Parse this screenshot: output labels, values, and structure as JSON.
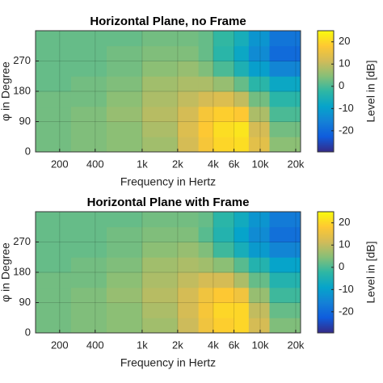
{
  "chart_data": [
    {
      "type": "heatmap",
      "title": "Horizontal Plane, no Frame",
      "xlabel": "Frequency in Hertz",
      "ylabel": "φ in Degree",
      "colorbar_label": "Level in [dB]",
      "x_edges": [
        125,
        250,
        500,
        1000,
        2000,
        3000,
        4000,
        6000,
        8000,
        12000,
        22000
      ],
      "y_edges": [
        0,
        45,
        90,
        135,
        180,
        225,
        270,
        315,
        360
      ],
      "z": [
        [
          3,
          4,
          5,
          7,
          12,
          17,
          20,
          21,
          14,
          5
        ],
        [
          3,
          4,
          5,
          8,
          13,
          18,
          21,
          22,
          12,
          3
        ],
        [
          3,
          4,
          6,
          9,
          12,
          17,
          19,
          18,
          8,
          0
        ],
        [
          3,
          3,
          5,
          8,
          10,
          12,
          13,
          10,
          3,
          -3
        ],
        [
          2,
          3,
          4,
          7,
          8,
          8,
          6,
          2,
          -3,
          -8
        ],
        [
          2,
          2,
          3,
          5,
          6,
          4,
          0,
          -5,
          -10,
          -15
        ],
        [
          2,
          2,
          3,
          4,
          4,
          2,
          -3,
          -8,
          -14,
          -20
        ],
        [
          2,
          2,
          2,
          3,
          3,
          2,
          -2,
          -6,
          -12,
          -18
        ]
      ],
      "xscale": "log",
      "xlim": [
        125,
        22000
      ],
      "ylim": [
        0,
        360
      ],
      "xticks": [
        200,
        400,
        {
          "value": 1000,
          "label": "1k"
        },
        {
          "value": 2000,
          "label": "2k"
        },
        {
          "value": 4000,
          "label": "4k"
        },
        {
          "value": 6000,
          "label": "6k"
        },
        {
          "value": 10000,
          "label": "10k"
        },
        {
          "value": 20000,
          "label": "20k"
        }
      ],
      "yticks": [
        0,
        90,
        180,
        270
      ],
      "clim": [
        -29.5,
        25
      ],
      "cticks": [
        -20,
        -10,
        0,
        10,
        20
      ],
      "grid": true,
      "colormap": [
        "#352a87",
        "#0f5cdd",
        "#1481d6",
        "#06a4ca",
        "#2eb7a4",
        "#87bf77",
        "#d1bb59",
        "#fec832",
        "#f9fb0e"
      ]
    },
    {
      "type": "heatmap",
      "title": "Horizontal Plane with Frame",
      "xlabel": "Frequency in Hertz",
      "ylabel": "φ in Degree",
      "colorbar_label": "Level in [dB]",
      "x_edges": [
        125,
        250,
        500,
        1000,
        2000,
        3000,
        4000,
        6000,
        8000,
        12000,
        22000
      ],
      "y_edges": [
        0,
        45,
        90,
        135,
        180,
        225,
        270,
        315,
        360
      ],
      "z": [
        [
          3,
          4,
          5,
          7,
          11,
          16,
          19,
          20,
          12,
          4
        ],
        [
          3,
          4,
          5,
          8,
          12,
          17,
          20,
          20,
          10,
          2
        ],
        [
          3,
          4,
          6,
          9,
          12,
          16,
          18,
          16,
          6,
          -1
        ],
        [
          3,
          3,
          5,
          8,
          10,
          12,
          12,
          8,
          2,
          -4
        ],
        [
          2,
          3,
          4,
          7,
          8,
          7,
          5,
          1,
          -4,
          -9
        ],
        [
          2,
          2,
          3,
          5,
          6,
          4,
          -1,
          -6,
          -11,
          -15
        ],
        [
          2,
          2,
          3,
          4,
          4,
          1,
          -4,
          -9,
          -14,
          -19
        ],
        [
          2,
          2,
          2,
          3,
          3,
          2,
          -3,
          -7,
          -12,
          -17
        ]
      ],
      "xscale": "log",
      "xlim": [
        125,
        22000
      ],
      "ylim": [
        0,
        360
      ],
      "xticks": [
        200,
        400,
        {
          "value": 1000,
          "label": "1k"
        },
        {
          "value": 2000,
          "label": "2k"
        },
        {
          "value": 4000,
          "label": "4k"
        },
        {
          "value": 6000,
          "label": "6k"
        },
        {
          "value": 10000,
          "label": "10k"
        },
        {
          "value": 20000,
          "label": "20k"
        }
      ],
      "yticks": [
        0,
        90,
        180,
        270
      ],
      "clim": [
        -29.5,
        25
      ],
      "cticks": [
        -20,
        -10,
        0,
        10,
        20
      ],
      "grid": true,
      "colormap": [
        "#352a87",
        "#0f5cdd",
        "#1481d6",
        "#06a4ca",
        "#2eb7a4",
        "#87bf77",
        "#d1bb59",
        "#fec832",
        "#f9fb0e"
      ]
    }
  ]
}
